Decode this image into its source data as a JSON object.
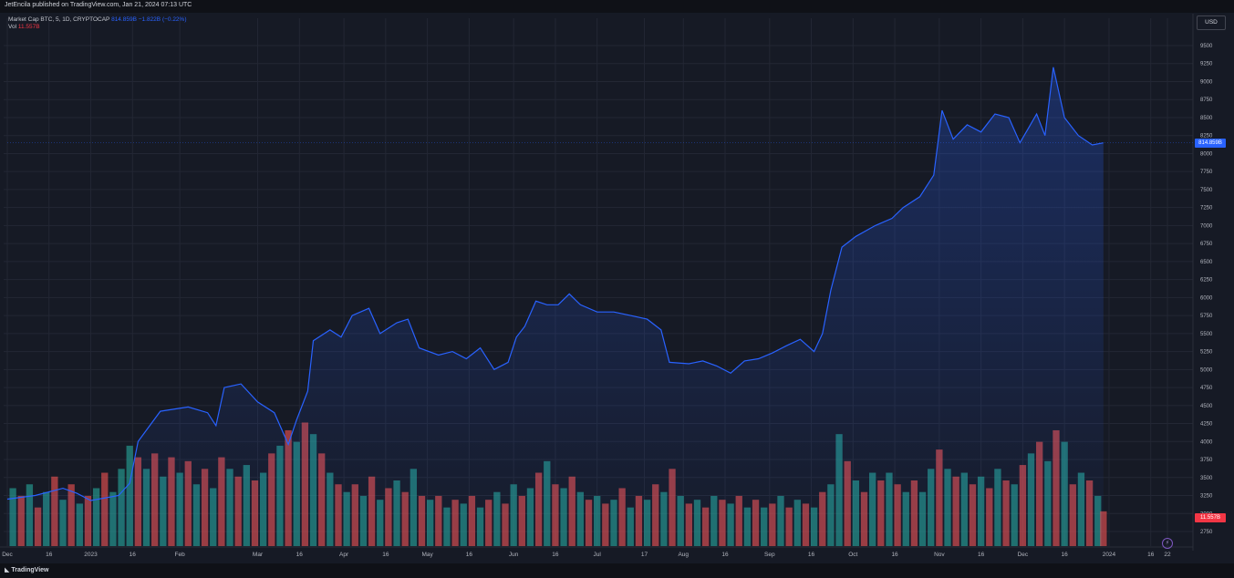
{
  "header": {
    "publisher_text": "JetEncila published on TradingView.com, Jan 21, 2024 07:13 UTC"
  },
  "legend": {
    "symbol": "Market Cap BTC, 5, 1D, CRYPTOCAP",
    "last_value": "814.859B",
    "change": "−1.822B (−0.22%)",
    "vol_label": "Vol",
    "vol_value": "11.557B"
  },
  "currency_button": "USD",
  "price_badge": "814.859B",
  "volume_badge": "11.557B",
  "footer": {
    "brand": "TradingView",
    "brand_icon": "tradingview-logo-icon"
  },
  "colors": {
    "line": "#2962ff",
    "up_volume": "#26a69a",
    "down_volume": "#ef5350",
    "background": "#161a25"
  },
  "chart_data": {
    "type": "area",
    "y_unit": "B",
    "ylim": [
      2500,
      9500
    ],
    "y_ticks": [
      2750,
      3000,
      3250,
      3500,
      3750,
      4000,
      4250,
      4500,
      4750,
      5000,
      5250,
      5500,
      5750,
      6000,
      6250,
      6500,
      6750,
      7000,
      7250,
      7500,
      7750,
      8000,
      8250,
      8500,
      8750,
      9000,
      9250,
      9500
    ],
    "y_tick_labels": [
      "2750",
      "3000",
      "3250",
      "3500",
      "3750",
      "4000",
      "4250",
      "4500",
      "4750",
      "5000",
      "5250",
      "5500",
      "5750",
      "6000",
      "6250",
      "6500",
      "6750",
      "7000",
      "7250",
      "7500",
      "7750",
      "8000",
      "8250",
      "8500",
      "8750",
      "9000",
      "9250",
      "9500"
    ],
    "x_tick_labels": [
      "Dec",
      "16",
      "2023",
      "16",
      "Feb",
      "Mar",
      "16",
      "Apr",
      "16",
      "May",
      "16",
      "Jun",
      "16",
      "Jul",
      "17",
      "Aug",
      "16",
      "Sep",
      "16",
      "Oct",
      "16",
      "Nov",
      "16",
      "Dec",
      "16",
      "2024",
      "16",
      "22"
    ],
    "x_tick_days": [
      0,
      15,
      30,
      45,
      62,
      90,
      105,
      121,
      136,
      151,
      166,
      182,
      197,
      212,
      229,
      243,
      258,
      274,
      289,
      304,
      319,
      335,
      350,
      365,
      380,
      396,
      411,
      417
    ],
    "series": [
      {
        "name": "Market Cap",
        "points": [
          [
            0,
            3200
          ],
          [
            10,
            3250
          ],
          [
            20,
            3350
          ],
          [
            25,
            3280
          ],
          [
            30,
            3180
          ],
          [
            40,
            3250
          ],
          [
            44,
            3420
          ],
          [
            47,
            4000
          ],
          [
            55,
            4420
          ],
          [
            65,
            4480
          ],
          [
            72,
            4400
          ],
          [
            75,
            4220
          ],
          [
            78,
            4750
          ],
          [
            84,
            4800
          ],
          [
            90,
            4550
          ],
          [
            96,
            4400
          ],
          [
            101,
            3960
          ],
          [
            104,
            4300
          ],
          [
            108,
            4700
          ],
          [
            110,
            5400
          ],
          [
            116,
            5550
          ],
          [
            120,
            5450
          ],
          [
            124,
            5750
          ],
          [
            130,
            5850
          ],
          [
            134,
            5500
          ],
          [
            140,
            5650
          ],
          [
            144,
            5700
          ],
          [
            148,
            5300
          ],
          [
            155,
            5200
          ],
          [
            160,
            5250
          ],
          [
            165,
            5150
          ],
          [
            170,
            5300
          ],
          [
            175,
            5000
          ],
          [
            180,
            5100
          ],
          [
            183,
            5450
          ],
          [
            186,
            5600
          ],
          [
            190,
            5950
          ],
          [
            194,
            5900
          ],
          [
            198,
            5900
          ],
          [
            202,
            6050
          ],
          [
            206,
            5900
          ],
          [
            212,
            5800
          ],
          [
            218,
            5800
          ],
          [
            224,
            5750
          ],
          [
            230,
            5700
          ],
          [
            235,
            5550
          ],
          [
            238,
            5100
          ],
          [
            245,
            5080
          ],
          [
            250,
            5120
          ],
          [
            255,
            5050
          ],
          [
            260,
            4950
          ],
          [
            265,
            5120
          ],
          [
            270,
            5150
          ],
          [
            275,
            5230
          ],
          [
            280,
            5330
          ],
          [
            285,
            5420
          ],
          [
            290,
            5250
          ],
          [
            293,
            5500
          ],
          [
            296,
            6100
          ],
          [
            300,
            6700
          ],
          [
            305,
            6850
          ],
          [
            312,
            7000
          ],
          [
            318,
            7100
          ],
          [
            322,
            7250
          ],
          [
            328,
            7400
          ],
          [
            333,
            7700
          ],
          [
            336,
            8600
          ],
          [
            340,
            8200
          ],
          [
            345,
            8400
          ],
          [
            350,
            8300
          ],
          [
            355,
            8550
          ],
          [
            360,
            8500
          ],
          [
            364,
            8150
          ],
          [
            367,
            8350
          ],
          [
            370,
            8550
          ],
          [
            373,
            8250
          ],
          [
            376,
            9200
          ],
          [
            380,
            8500
          ],
          [
            385,
            8250
          ],
          [
            390,
            8120
          ],
          [
            394,
            8149
          ]
        ]
      }
    ],
    "volume": {
      "name": "Vol",
      "ylim": [
        0,
        3.4
      ],
      "bars": [
        [
          2,
          1.5,
          1
        ],
        [
          5,
          1.3,
          0
        ],
        [
          8,
          1.6,
          1
        ],
        [
          11,
          1.0,
          0
        ],
        [
          14,
          1.4,
          1
        ],
        [
          17,
          1.8,
          0
        ],
        [
          20,
          1.2,
          1
        ],
        [
          23,
          1.6,
          0
        ],
        [
          26,
          1.1,
          1
        ],
        [
          29,
          1.3,
          0
        ],
        [
          32,
          1.5,
          1
        ],
        [
          35,
          1.9,
          0
        ],
        [
          38,
          1.4,
          1
        ],
        [
          41,
          2.0,
          1
        ],
        [
          44,
          2.6,
          1
        ],
        [
          47,
          2.3,
          0
        ],
        [
          50,
          2.0,
          1
        ],
        [
          53,
          2.4,
          0
        ],
        [
          56,
          1.8,
          1
        ],
        [
          59,
          2.3,
          0
        ],
        [
          62,
          1.9,
          1
        ],
        [
          65,
          2.2,
          0
        ],
        [
          68,
          1.6,
          1
        ],
        [
          71,
          2.0,
          0
        ],
        [
          74,
          1.5,
          1
        ],
        [
          77,
          2.3,
          0
        ],
        [
          80,
          2.0,
          1
        ],
        [
          83,
          1.8,
          0
        ],
        [
          86,
          2.1,
          1
        ],
        [
          89,
          1.7,
          0
        ],
        [
          92,
          1.9,
          1
        ],
        [
          95,
          2.4,
          0
        ],
        [
          98,
          2.6,
          1
        ],
        [
          101,
          3.0,
          0
        ],
        [
          104,
          2.7,
          1
        ],
        [
          107,
          3.2,
          0
        ],
        [
          110,
          2.9,
          1
        ],
        [
          113,
          2.4,
          0
        ],
        [
          116,
          1.9,
          1
        ],
        [
          119,
          1.6,
          0
        ],
        [
          122,
          1.4,
          1
        ],
        [
          125,
          1.6,
          0
        ],
        [
          128,
          1.3,
          1
        ],
        [
          131,
          1.8,
          0
        ],
        [
          134,
          1.2,
          1
        ],
        [
          137,
          1.5,
          0
        ],
        [
          140,
          1.7,
          1
        ],
        [
          143,
          1.4,
          0
        ],
        [
          146,
          2.0,
          1
        ],
        [
          149,
          1.3,
          0
        ],
        [
          152,
          1.2,
          1
        ],
        [
          155,
          1.3,
          0
        ],
        [
          158,
          1.0,
          1
        ],
        [
          161,
          1.2,
          0
        ],
        [
          164,
          1.1,
          1
        ],
        [
          167,
          1.3,
          0
        ],
        [
          170,
          1.0,
          1
        ],
        [
          173,
          1.2,
          0
        ],
        [
          176,
          1.4,
          1
        ],
        [
          179,
          1.1,
          0
        ],
        [
          182,
          1.6,
          1
        ],
        [
          185,
          1.3,
          0
        ],
        [
          188,
          1.5,
          1
        ],
        [
          191,
          1.9,
          0
        ],
        [
          194,
          2.2,
          1
        ],
        [
          197,
          1.6,
          0
        ],
        [
          200,
          1.5,
          1
        ],
        [
          203,
          1.8,
          0
        ],
        [
          206,
          1.4,
          1
        ],
        [
          209,
          1.2,
          0
        ],
        [
          212,
          1.3,
          1
        ],
        [
          215,
          1.1,
          0
        ],
        [
          218,
          1.2,
          1
        ],
        [
          221,
          1.5,
          0
        ],
        [
          224,
          1.0,
          1
        ],
        [
          227,
          1.3,
          0
        ],
        [
          230,
          1.2,
          1
        ],
        [
          233,
          1.6,
          0
        ],
        [
          236,
          1.4,
          1
        ],
        [
          239,
          2.0,
          0
        ],
        [
          242,
          1.3,
          1
        ],
        [
          245,
          1.1,
          0
        ],
        [
          248,
          1.2,
          1
        ],
        [
          251,
          1.0,
          0
        ],
        [
          254,
          1.3,
          1
        ],
        [
          257,
          1.2,
          0
        ],
        [
          260,
          1.1,
          1
        ],
        [
          263,
          1.3,
          0
        ],
        [
          266,
          1.0,
          1
        ],
        [
          269,
          1.2,
          0
        ],
        [
          272,
          1.0,
          1
        ],
        [
          275,
          1.1,
          0
        ],
        [
          278,
          1.3,
          1
        ],
        [
          281,
          1.0,
          0
        ],
        [
          284,
          1.2,
          1
        ],
        [
          287,
          1.1,
          0
        ],
        [
          290,
          1.0,
          1
        ],
        [
          293,
          1.4,
          0
        ],
        [
          296,
          1.6,
          1
        ],
        [
          299,
          2.9,
          1
        ],
        [
          302,
          2.2,
          0
        ],
        [
          305,
          1.7,
          1
        ],
        [
          308,
          1.4,
          0
        ],
        [
          311,
          1.9,
          1
        ],
        [
          314,
          1.7,
          0
        ],
        [
          317,
          1.9,
          1
        ],
        [
          320,
          1.6,
          0
        ],
        [
          323,
          1.4,
          1
        ],
        [
          326,
          1.7,
          0
        ],
        [
          329,
          1.4,
          1
        ],
        [
          332,
          2.0,
          1
        ],
        [
          335,
          2.5,
          0
        ],
        [
          338,
          2.0,
          1
        ],
        [
          341,
          1.8,
          0
        ],
        [
          344,
          1.9,
          1
        ],
        [
          347,
          1.6,
          0
        ],
        [
          350,
          1.8,
          1
        ],
        [
          353,
          1.5,
          0
        ],
        [
          356,
          2.0,
          1
        ],
        [
          359,
          1.7,
          0
        ],
        [
          362,
          1.6,
          1
        ],
        [
          365,
          2.1,
          0
        ],
        [
          368,
          2.4,
          1
        ],
        [
          371,
          2.7,
          0
        ],
        [
          374,
          2.2,
          1
        ],
        [
          377,
          3.0,
          0
        ],
        [
          380,
          2.7,
          1
        ],
        [
          383,
          1.6,
          0
        ],
        [
          386,
          1.9,
          1
        ],
        [
          389,
          1.7,
          0
        ],
        [
          392,
          1.3,
          1
        ],
        [
          394,
          0.9,
          0
        ]
      ]
    }
  }
}
